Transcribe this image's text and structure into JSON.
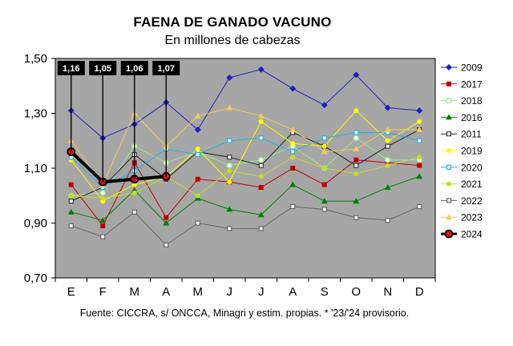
{
  "chart_data": {
    "type": "line",
    "title": "FAENA DE GANADO VACUNO",
    "subtitle": "En millones de cabezas",
    "source": "Fuente: CICCRA, s/ ONCCA, Minagri y estim. propias. * '23/'24 provisorio.",
    "categories": [
      "E",
      "F",
      "M",
      "A",
      "M",
      "J",
      "J",
      "A",
      "S",
      "O",
      "N",
      "D"
    ],
    "y_ticks": [
      "1,50",
      "1,30",
      "1,10",
      "0,90",
      "0,70"
    ],
    "ylim": [
      0.7,
      1.5
    ],
    "grid": false,
    "legend_position": "right",
    "series": [
      {
        "name": "2009",
        "color": "#1f1fbf",
        "marker": "diamond",
        "values": [
          1.31,
          1.21,
          1.26,
          1.34,
          1.24,
          1.43,
          1.46,
          1.39,
          1.33,
          1.44,
          1.32,
          1.31
        ]
      },
      {
        "name": "2017",
        "color": "#c00000",
        "marker": "square",
        "values": [
          1.04,
          0.89,
          1.12,
          0.92,
          1.06,
          1.05,
          1.03,
          1.1,
          1.04,
          1.13,
          1.12,
          1.11
        ]
      },
      {
        "name": "2018",
        "color": "#9ee88e",
        "marker": "circle-open",
        "values": [
          1.0,
          1.01,
          1.18,
          1.12,
          1.16,
          1.11,
          1.13,
          1.18,
          1.1,
          1.21,
          1.13,
          1.13
        ]
      },
      {
        "name": "2016",
        "color": "#008000",
        "marker": "triangle",
        "values": [
          0.94,
          0.91,
          1.02,
          0.9,
          0.99,
          0.95,
          0.93,
          1.04,
          0.98,
          0.98,
          1.03,
          1.07
        ]
      },
      {
        "name": "2011",
        "color": "#202020",
        "marker": "square-small",
        "values": [
          0.98,
          1.03,
          1.15,
          1.06,
          1.16,
          1.14,
          1.11,
          1.23,
          1.18,
          1.11,
          1.18,
          1.24
        ]
      },
      {
        "name": "2019",
        "color": "#ffff00",
        "marker": "circle",
        "values": [
          1.13,
          0.98,
          1.04,
          1.07,
          1.17,
          1.05,
          1.27,
          1.19,
          1.18,
          1.31,
          1.2,
          1.27
        ]
      },
      {
        "name": "2020",
        "color": "#1fb0e0",
        "marker": "square-open",
        "values": [
          1.14,
          1.03,
          1.09,
          1.17,
          1.15,
          1.2,
          1.21,
          1.16,
          1.21,
          1.23,
          1.23,
          1.2
        ]
      },
      {
        "name": "2021",
        "color": "#c8dc28",
        "marker": "circle",
        "values": [
          1.0,
          0.99,
          1.01,
          1.07,
          1.0,
          1.09,
          1.07,
          1.14,
          1.1,
          1.08,
          1.11,
          1.14
        ]
      },
      {
        "name": "2022",
        "color": "#666666",
        "marker": "square-open",
        "values": [
          0.89,
          0.85,
          0.94,
          0.82,
          0.9,
          0.88,
          0.88,
          0.96,
          0.95,
          0.92,
          0.91,
          0.96
        ]
      },
      {
        "name": "2023",
        "color": "#f0cc5a",
        "marker": "triangle",
        "values": [
          1.2,
          1.04,
          1.3,
          1.18,
          1.29,
          1.32,
          1.29,
          1.24,
          1.16,
          1.17,
          1.24,
          1.24
        ]
      },
      {
        "name": "2024",
        "color": "#000000",
        "marker": "circle-red",
        "values": [
          1.16,
          1.05,
          1.06,
          1.07,
          null,
          null,
          null,
          null,
          null,
          null,
          null,
          null
        ]
      }
    ],
    "callouts": [
      {
        "label": "1,16",
        "index": 0
      },
      {
        "label": "1,05",
        "index": 1
      },
      {
        "label": "1,06",
        "index": 2
      },
      {
        "label": "1,07",
        "index": 3
      }
    ]
  }
}
